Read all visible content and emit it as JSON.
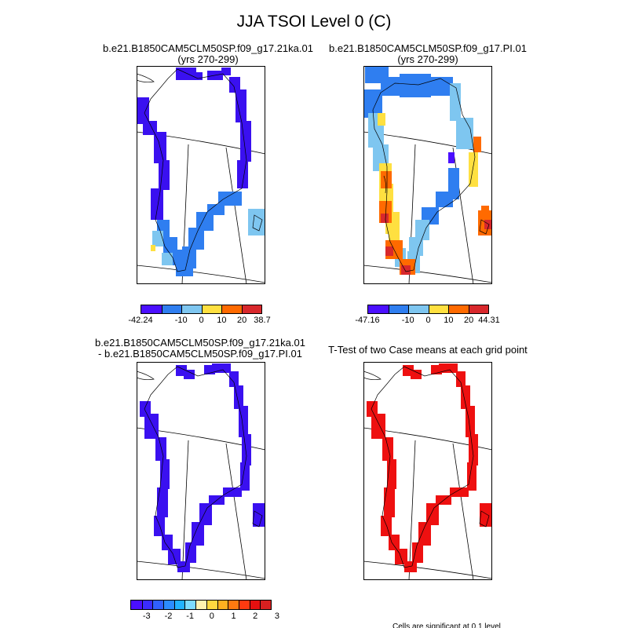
{
  "title": "JJA TSOI Level 0 (C)",
  "panels": [
    {
      "line1": "b.e21.B1850CAM5CLM50SP.f09_g17.21ka.01",
      "line2": "(yrs 270-299)"
    },
    {
      "line1": "b.e21.B1850CAM5CLM50SP.f09_g17.PI.01",
      "line2": "(yrs 270-299)"
    },
    {
      "line1": "b.e21.B1850CAM5CLM50SP.f09_g17.21ka.01",
      "line2": "- b.e21.B1850CAM5CLM50SP.f09_g17.PI.01"
    },
    {
      "line1": "T-Test of two Case means at each grid point",
      "line2": ""
    }
  ],
  "colorbars": [
    {
      "colors": [
        "#4b0fff",
        "#2f7ef0",
        "#7ec6f0",
        "#ffe040",
        "#ff6a00",
        "#d8282c"
      ],
      "labels": [
        "-42.24",
        "-10",
        "0",
        "10",
        "20",
        "38.7"
      ]
    },
    {
      "colors": [
        "#4b0fff",
        "#2f7ef0",
        "#7ec6f0",
        "#ffe040",
        "#ff6a00",
        "#d8282c"
      ],
      "labels": [
        "-47.16",
        "-10",
        "0",
        "10",
        "20",
        "44.31"
      ]
    },
    {
      "colors": [
        "#4b0fff",
        "#3b2cff",
        "#3060ff",
        "#2c8cff",
        "#22b2ff",
        "#7edcff",
        "#fff2b0",
        "#ffd840",
        "#ffb020",
        "#ff7a10",
        "#ff3a10",
        "#e51010",
        "#d82020"
      ],
      "labels": [
        "-3",
        "-2",
        "-1",
        "0",
        "1",
        "2",
        "3"
      ]
    }
  ],
  "footnote": "Cells are significant at 0.1 level"
}
